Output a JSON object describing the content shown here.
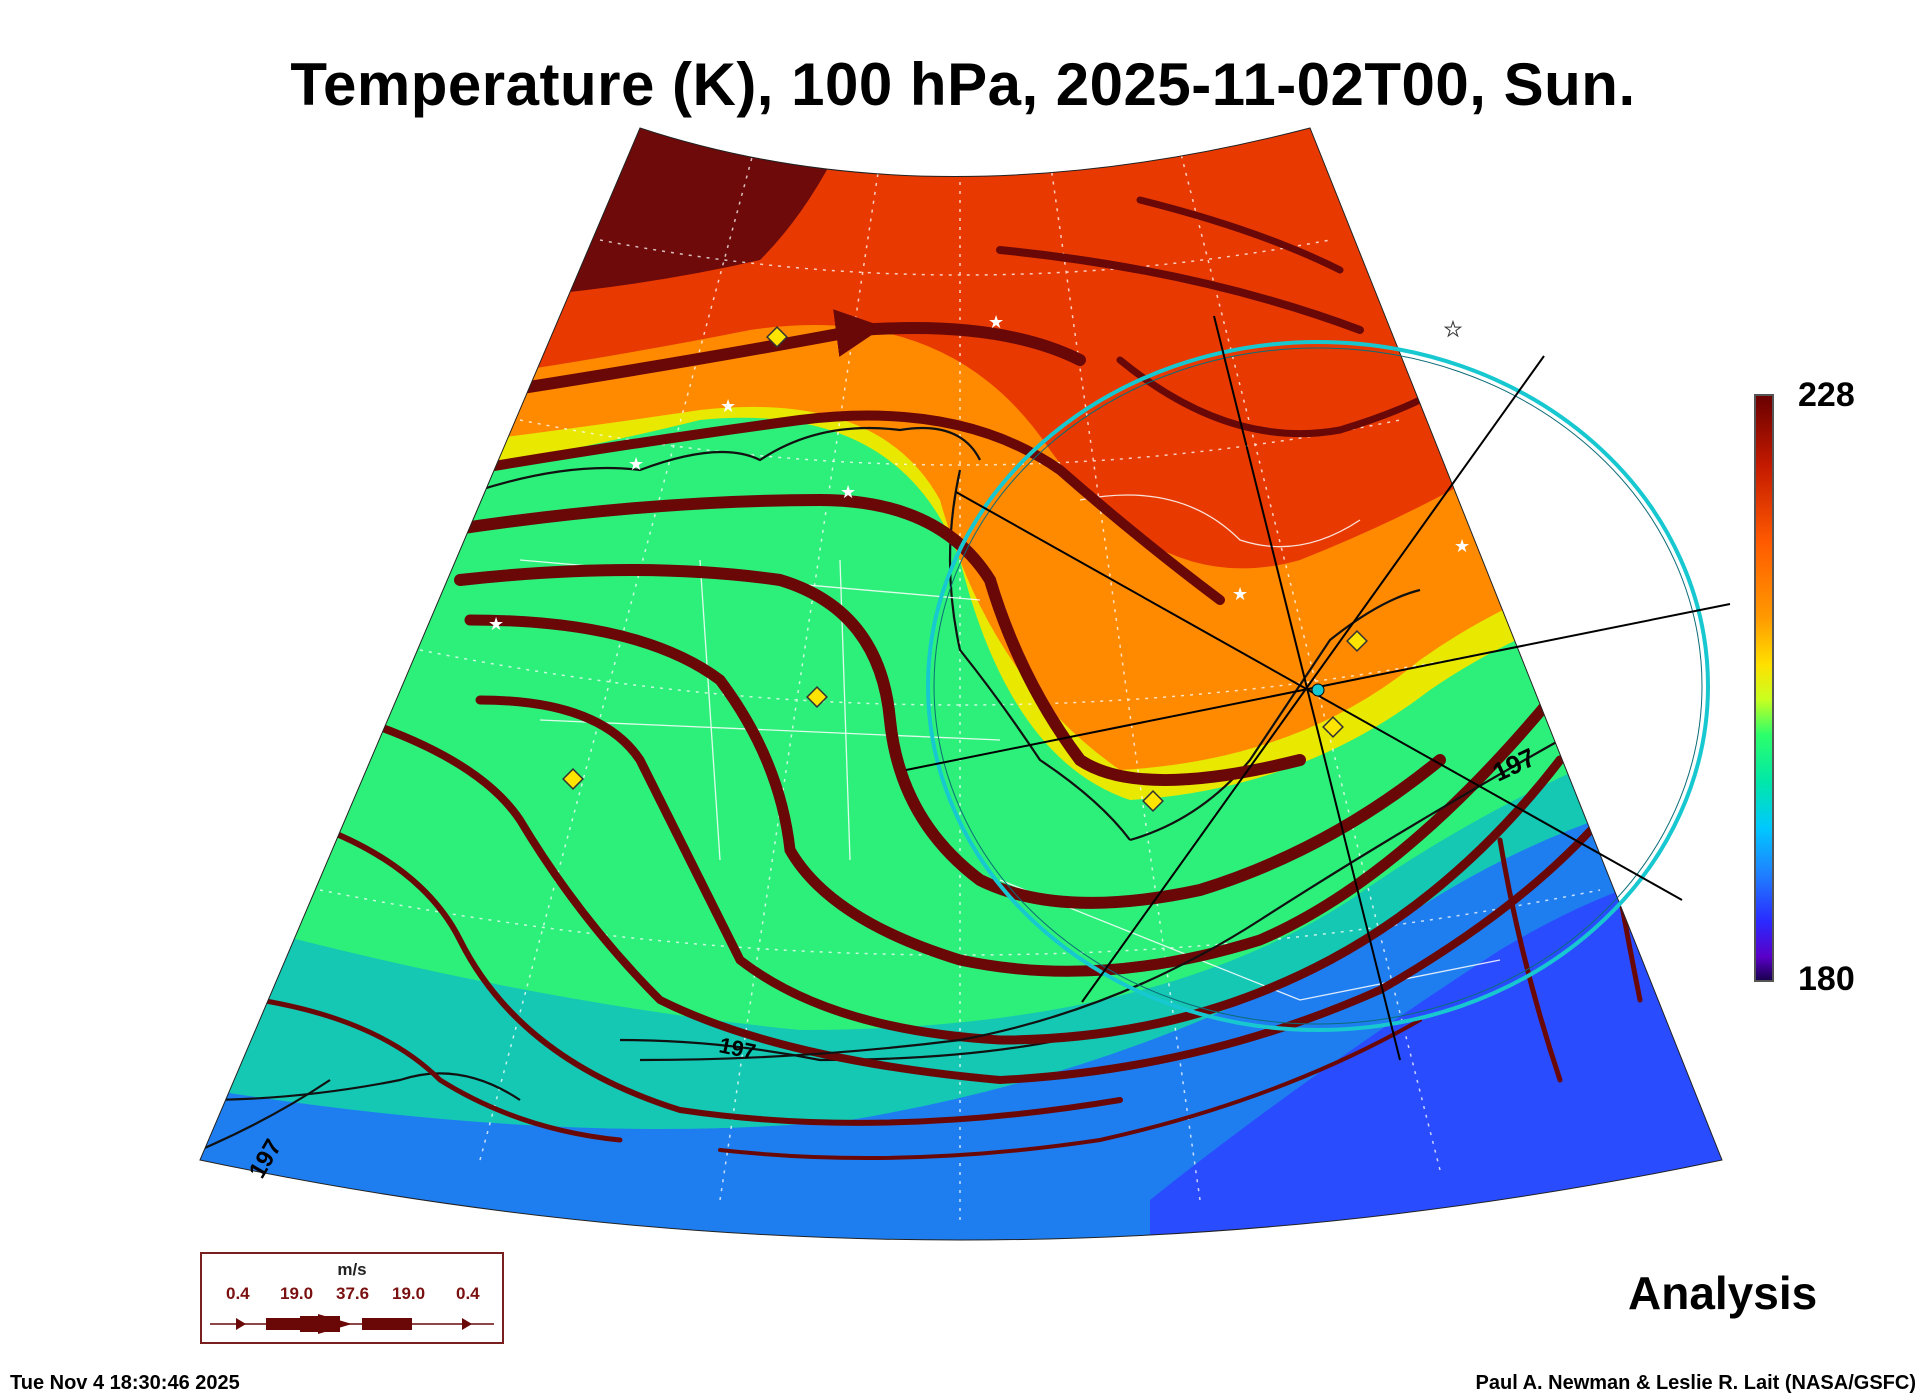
{
  "title": "Temperature (K), 100 hPa, 2025-11-02T00, Sun.",
  "colorbar": {
    "max_label": "228",
    "min_label": "180",
    "min": 180,
    "max": 228,
    "colors": [
      "#ffffff",
      "#6a0000",
      "#c41a00",
      "#ff5a00",
      "#ff9a00",
      "#ffe000",
      "#c8ff20",
      "#2cff6a",
      "#00e8a8",
      "#00c8ff",
      "#1f7fff",
      "#2a2aff",
      "#5a00c8",
      "#1a0050"
    ]
  },
  "contour_labels": [
    "197",
    "197",
    "197"
  ],
  "map_colors": {
    "warm_dark": "#6e0a0a",
    "warm": "#e83a00",
    "orange": "#ff8a00",
    "yellow": "#e8e800",
    "green": "#2cf07a",
    "teal": "#14c8b4",
    "blue": "#1e7ef0",
    "deep_blue": "#2a4cff",
    "streamline": "#6a0808",
    "circle": "#18c8d0"
  },
  "wind_legend": {
    "unit": "m/s",
    "values": [
      "0.4",
      "19.0",
      "37.6",
      "19.0",
      "0.4"
    ]
  },
  "analysis_label": "Analysis",
  "timestamp": "Tue Nov  4 18:30:46 2025",
  "credit": "Paul A. Newman & Leslie R. Lait (NASA/GSFC)"
}
